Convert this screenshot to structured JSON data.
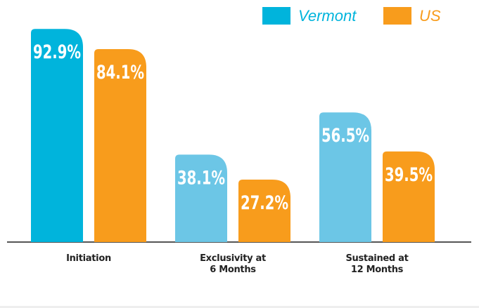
{
  "chart_data": {
    "type": "bar",
    "categories": [
      "Initiation",
      "Exclusivity at\n6 Months",
      "Sustained at\n12 Months"
    ],
    "series": [
      {
        "name": "Vermont",
        "color": "#00b4dc",
        "colors": [
          "#00b4dc",
          "#6cc6e6",
          "#6cc6e6"
        ],
        "values": [
          92.9,
          38.1,
          56.5
        ],
        "value_labels": [
          "92.9%",
          "38.1%",
          "56.5%"
        ]
      },
      {
        "name": "US",
        "color": "#f89c1c",
        "colors": [
          "#f89c1c",
          "#f89c1c",
          "#f89c1c"
        ],
        "values": [
          84.1,
          27.2,
          39.5
        ],
        "value_labels": [
          "84.1%",
          "27.2%",
          "39.5%"
        ]
      }
    ],
    "legend": "top-right"
  }
}
